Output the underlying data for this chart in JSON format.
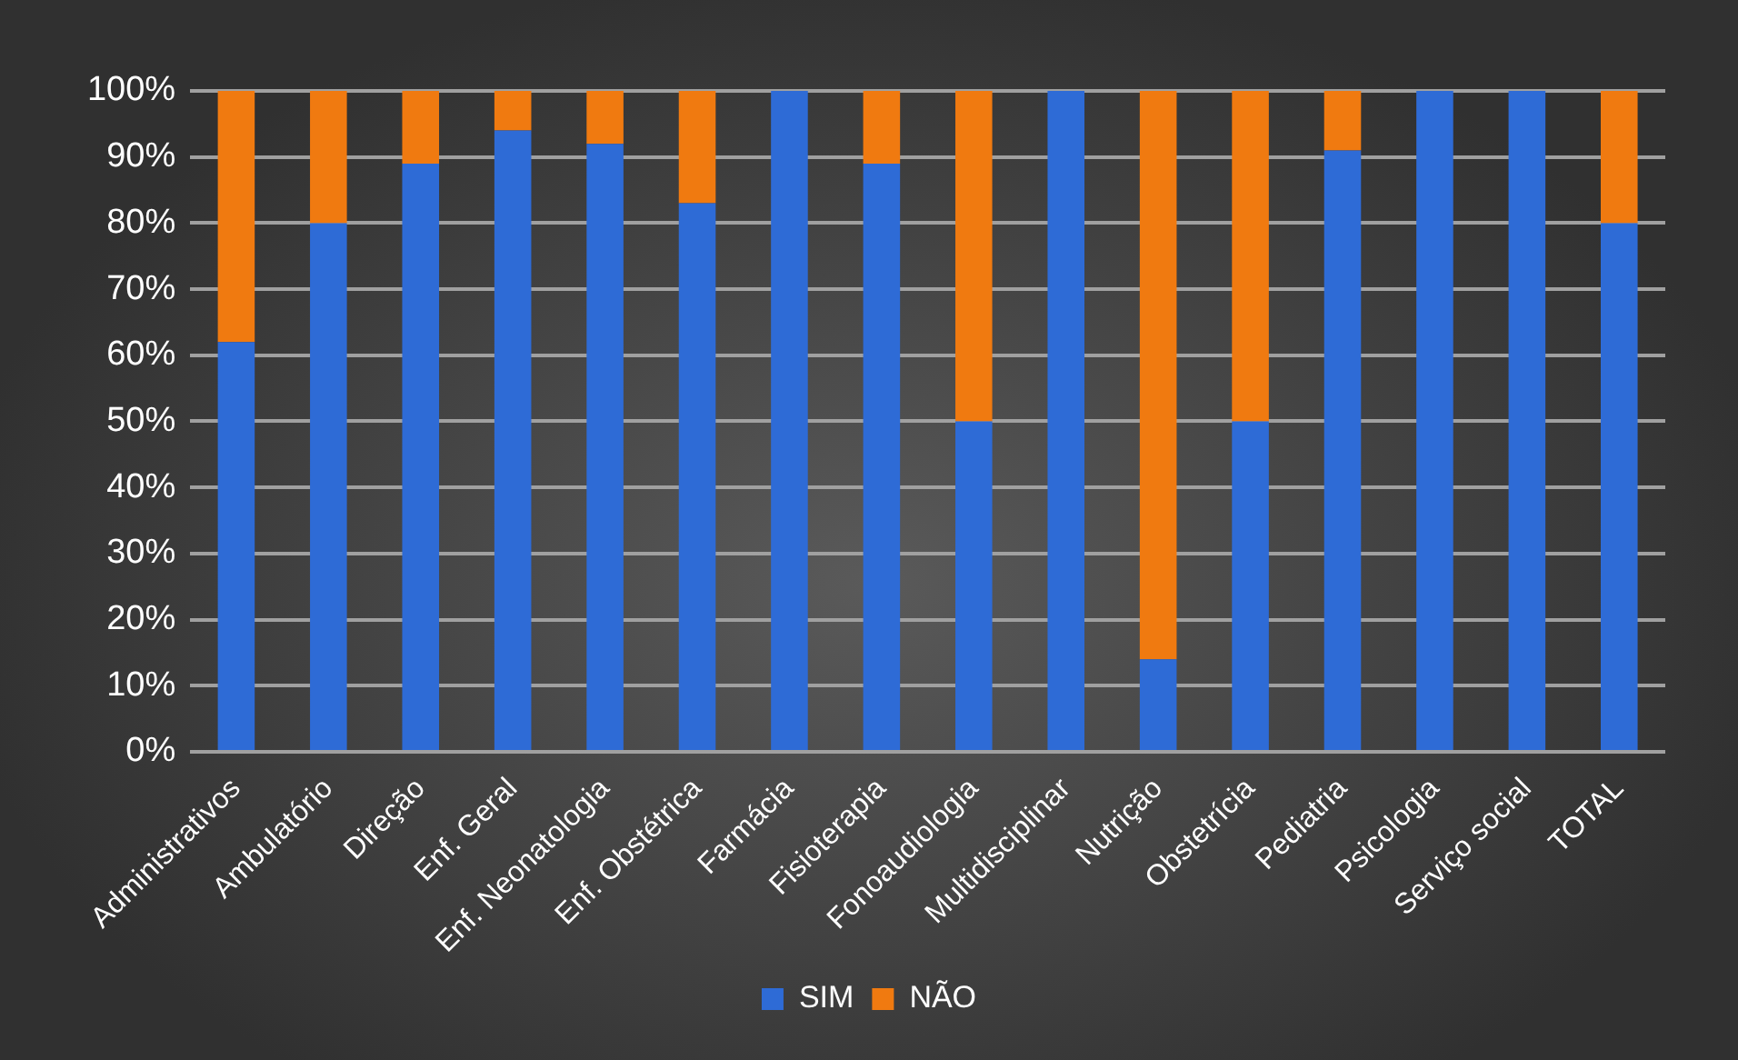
{
  "chart_data": {
    "type": "bar",
    "stacked": true,
    "categories": [
      "Administrativos",
      "Ambulatório",
      "Direção",
      "Enf. Geral",
      "Enf. Neonatologia",
      "Enf. Obstétrica",
      "Farmácia",
      "Fisioterapia",
      "Fonoaudiologia",
      "Multidisciplinar",
      "Nutrição",
      "Obstetrícia",
      "Pediatria",
      "Psicologia",
      "Serviço social",
      "TOTAL"
    ],
    "series": [
      {
        "name": "SIM",
        "color": "#2e6bd6",
        "values": [
          62,
          80,
          89,
          94,
          92,
          83,
          100,
          89,
          50,
          100,
          14,
          50,
          91,
          100,
          100,
          80
        ]
      },
      {
        "name": "NÃO",
        "color": "#f07a10",
        "values": [
          38,
          20,
          11,
          6,
          8,
          17,
          0,
          11,
          50,
          0,
          86,
          50,
          9,
          0,
          0,
          20
        ]
      }
    ],
    "ylim": [
      0,
      100
    ],
    "yticks": [
      {
        "value": 0,
        "label": "0%"
      },
      {
        "value": 10,
        "label": "10%"
      },
      {
        "value": 20,
        "label": "20%"
      },
      {
        "value": 30,
        "label": "30%"
      },
      {
        "value": 40,
        "label": "40%"
      },
      {
        "value": 50,
        "label": "50%"
      },
      {
        "value": 60,
        "label": "60%"
      },
      {
        "value": 70,
        "label": "70%"
      },
      {
        "value": 80,
        "label": "80%"
      },
      {
        "value": 90,
        "label": "90%"
      },
      {
        "value": 100,
        "label": "100%"
      }
    ],
    "grid": "y",
    "legend": "bottom"
  }
}
